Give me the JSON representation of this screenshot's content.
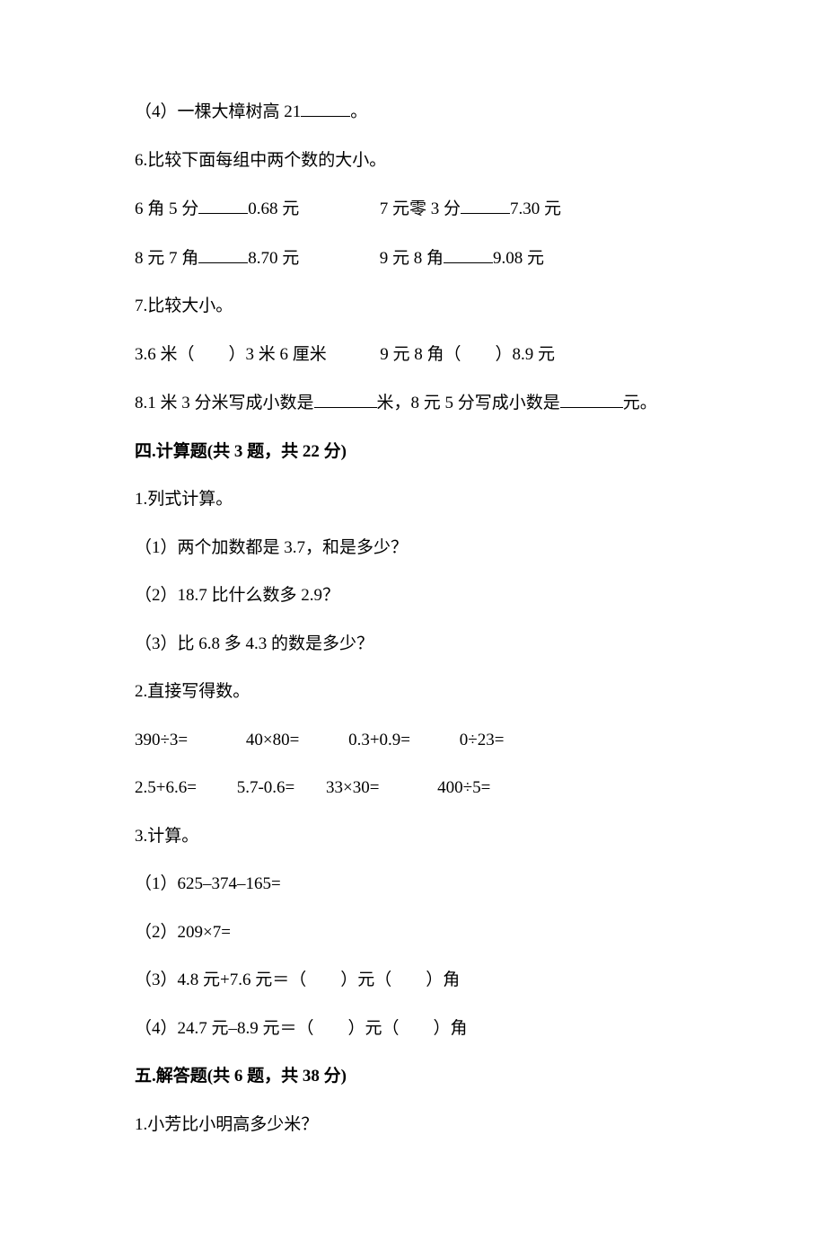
{
  "q5_4": "（4）一棵大樟树高 21",
  "period": "。",
  "q6": "6.比较下面每组中两个数的大小。",
  "q6_r1_a_pre": "6 角 5 分",
  "q6_r1_a_post": "0.68 元",
  "q6_r1_b_pre": "7 元零 3 分",
  "q6_r1_b_post": "7.30 元",
  "q6_r2_a_pre": "8 元 7 角",
  "q6_r2_a_post": "8.70 元",
  "q6_r2_b_pre": "9 元 8 角",
  "q6_r2_b_post": "9.08 元",
  "q7": "7.比较大小。",
  "q7_a": "3.6 米（　　）3 米 6 厘米",
  "q7_b": "9 元 8 角（　　）8.9 元",
  "q8_a": "8.1 米 3 分米写成小数是",
  "q8_b": "米，8 元 5 分写成小数是",
  "q8_c": "元。",
  "sec4": "四.计算题(共 3 题，共 22 分)",
  "s4_q1": "1.列式计算。",
  "s4_q1_1": "（1）两个加数都是 3.7，和是多少？",
  "s4_q1_2": "（2）18.7 比什么数多 2.9？",
  "s4_q1_3": "（3）比 6.8 多 4.3 的数是多少？",
  "s4_q2": "2.直接写得数。",
  "s4_q2_r1_a": "390÷3=",
  "s4_q2_r1_b": "40×80=",
  "s4_q2_r1_c": "0.3+0.9=",
  "s4_q2_r1_d": "0÷23=",
  "s4_q2_r2_a": "2.5+6.6=",
  "s4_q2_r2_b": "5.7-0.6=",
  "s4_q2_r2_c": "33×30=",
  "s4_q2_r2_d": "400÷5=",
  "s4_q3": "3.计算。",
  "s4_q3_1": "（1）625–374–165=",
  "s4_q3_2": "（2）209×7=",
  "s4_q3_3": "（3）4.8 元+7.6 元＝（　　）元（　　）角",
  "s4_q3_4": "（4）24.7 元–8.9 元＝（　　）元（　　）角",
  "sec5": "五.解答题(共 6 题，共 38 分)",
  "s5_q1": "1.小芳比小明高多少米？"
}
